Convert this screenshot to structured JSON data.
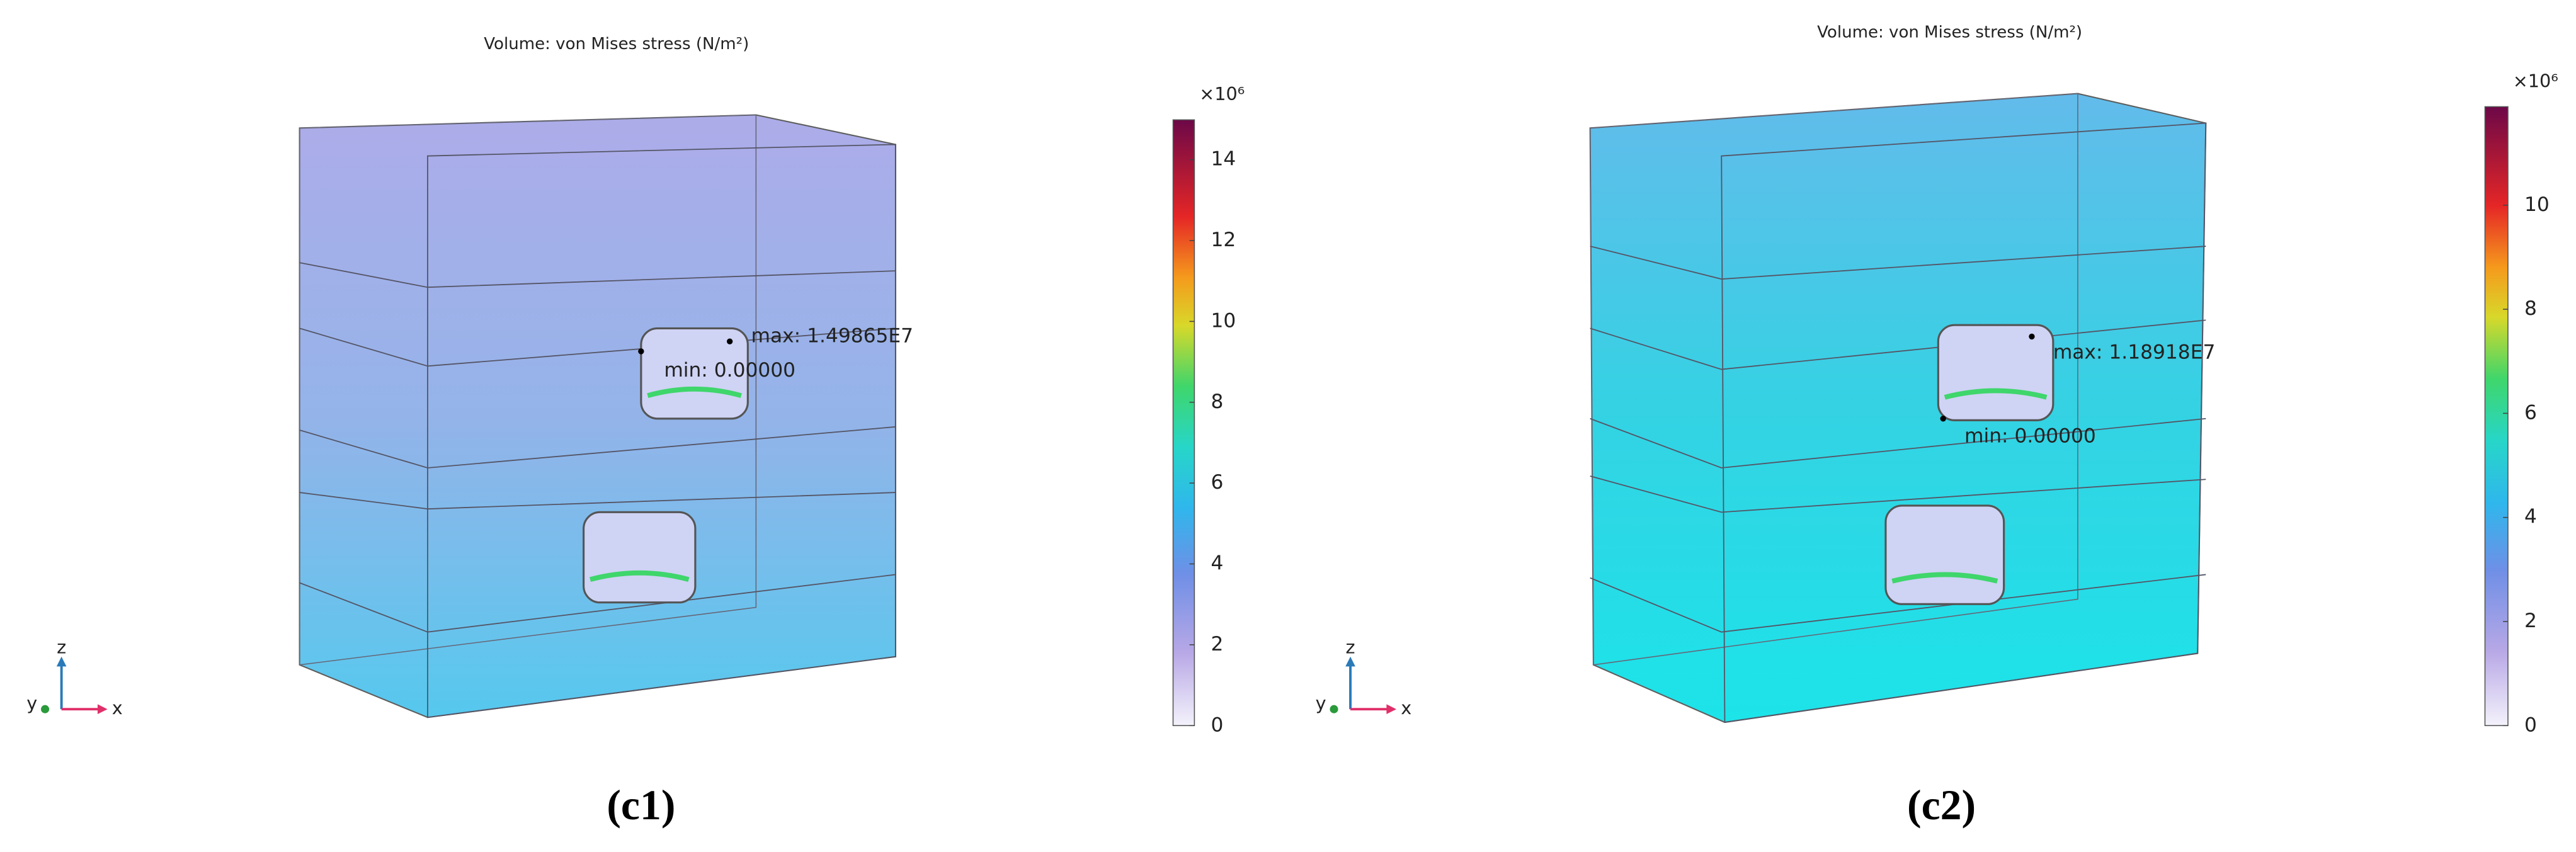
{
  "panels": [
    {
      "title": "Volume: von Mises stress (N/m²)",
      "multiplier": "×10⁶",
      "colorbar_range": [
        0,
        14.9865
      ],
      "colorbar_ticks": [
        0,
        2,
        4,
        6,
        8,
        10,
        12,
        14
      ],
      "max_label": "max: 1.49865E7",
      "min_label": "min: 0.00000",
      "axis_labels": {
        "z": "z",
        "y": "y",
        "x": "x"
      },
      "caption": "(c1)"
    },
    {
      "title": "Volume: von Mises stress (N/m²)",
      "multiplier": "×10⁶",
      "colorbar_range": [
        0,
        11.8918
      ],
      "colorbar_ticks": [
        0,
        2,
        4,
        6,
        8,
        10
      ],
      "max_label": "max: 1.18918E7",
      "min_label": "min: 0.00000",
      "axis_labels": {
        "z": "z",
        "y": "y",
        "x": "x"
      },
      "caption": "(c2)"
    }
  ]
}
